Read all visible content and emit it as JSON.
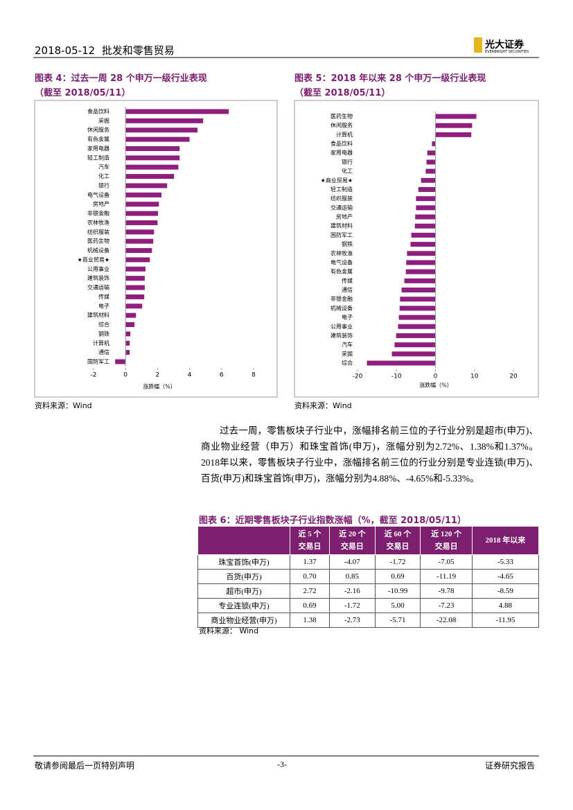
{
  "header": {
    "date": "2018-05-12",
    "industry": "批发和零售贸易",
    "logo": "光大证券",
    "logo_en": "EVERBRIGHT SECURITIES"
  },
  "chart_data": [
    {
      "type": "bar",
      "orientation": "horizontal",
      "title": "图表 4：过去一周 28 个申万一级行业表现",
      "subtitle": "（截至 2018/05/11）",
      "xlabel": "涨跌幅（%）",
      "source": "资料来源：Wind",
      "color": "#8e1f7f",
      "categories": [
        "食品饮料",
        "采掘",
        "休闲服务",
        "有色金属",
        "家用电器",
        "轻工制造",
        "汽车",
        "化工",
        "银行",
        "电气设备",
        "房地产",
        "非银金融",
        "农林牧渔",
        "纺织服装",
        "医药生物",
        "机械设备",
        "★商业贸易★",
        "公用事业",
        "建筑装饰",
        "交通运输",
        "传媒",
        "电子",
        "建筑材料",
        "综合",
        "钢铁",
        "计算机",
        "通信",
        "国防军工"
      ],
      "values": [
        6.45,
        4.85,
        4.5,
        4.0,
        3.38,
        3.38,
        3.3,
        3.03,
        2.6,
        2.25,
        2.08,
        2.03,
        2.0,
        1.78,
        1.73,
        1.65,
        1.52,
        1.25,
        1.2,
        1.2,
        1.17,
        1.04,
        0.65,
        0.56,
        0.3,
        0.26,
        0.26,
        -0.65
      ],
      "xlim": [
        -2,
        8
      ],
      "xticks": [
        -2,
        0,
        2,
        4,
        6,
        8
      ]
    },
    {
      "type": "bar",
      "orientation": "horizontal",
      "title": "图表 5：2018 年以来 28 个申万一级行业表现",
      "subtitle": "（截至 2018/05/11）",
      "xlabel": "涨跌幅（%）",
      "source": "资料来源：Wind",
      "color": "#8e1f7f",
      "categories": [
        "医药生物",
        "休闲服务",
        "计算机",
        "食品饮料",
        "家用电器",
        "银行",
        "化工",
        "★商业贸易★",
        "轻工制造",
        "纺织服装",
        "交通运输",
        "房地产",
        "建筑材料",
        "国防军工",
        "钢铁",
        "农林牧渔",
        "电气设备",
        "有色金属",
        "传媒",
        "通信",
        "非银金融",
        "机械设备",
        "电子",
        "公用事业",
        "建筑装饰",
        "汽车",
        "采掘",
        "综合"
      ],
      "values": [
        10.5,
        9.4,
        9.2,
        -0.9,
        -2.1,
        -2.3,
        -2.5,
        -3.7,
        -4.4,
        -5.0,
        -5.0,
        -5.2,
        -5.3,
        -6.2,
        -6.4,
        -7.3,
        -7.5,
        -7.6,
        -8.0,
        -8.7,
        -9.1,
        -9.2,
        -9.4,
        -9.6,
        -10.1,
        -10.5,
        -11.2,
        -17.6
      ],
      "xlim": [
        -20,
        20
      ],
      "xticks": [
        -20,
        -10,
        0,
        10,
        20
      ]
    }
  ],
  "paragraph": "过去一周，零售板块子行业中，涨幅排名前三位的子行业分别是超市(申万)、商业物业经营（申万）和珠宝首饰(申万)，涨幅分别为2.72%、1.38%和1.37%。2018年以来，零售板块子行业中，涨幅排名前三位的行业分别是专业连锁(申万)、百货(申万)和珠宝首饰(申万)，涨幅分别为4.88%、-4.65%和-5.33%。",
  "table": {
    "title": "图表 6：近期零售板块子行业指数涨幅（%，截至 2018/05/11）",
    "columns": [
      [
        "近 5 个",
        "交易日"
      ],
      [
        "近 20 个",
        "交易日"
      ],
      [
        "近 60 个",
        "交易日"
      ],
      [
        "近 120 个",
        "交易日"
      ],
      [
        "2018 年以来"
      ]
    ],
    "rows": [
      [
        "珠宝首饰(申万)",
        "1.37",
        "-4.07",
        "-1.72",
        "-7.05",
        "-5.33"
      ],
      [
        "百货(申万)",
        "0.70",
        "0.85",
        "0.69",
        "-11.19",
        "-4.65"
      ],
      [
        "超市(申万)",
        "2.72",
        "-2.16",
        "-10.99",
        "-9.78",
        "-8.59"
      ],
      [
        "专业连锁(申万)",
        "0.69",
        "-1.72",
        "5.00",
        "-7.23",
        "4.88"
      ],
      [
        "商业物业经营(申万)",
        "1.38",
        "-2.73",
        "-5.71",
        "-22.08",
        "-11.95"
      ]
    ],
    "source": "资料来源：   Wind"
  },
  "footer": {
    "left": "敬请参阅最后一页特别声明",
    "page": "-3-",
    "right": "证券研究报告"
  }
}
